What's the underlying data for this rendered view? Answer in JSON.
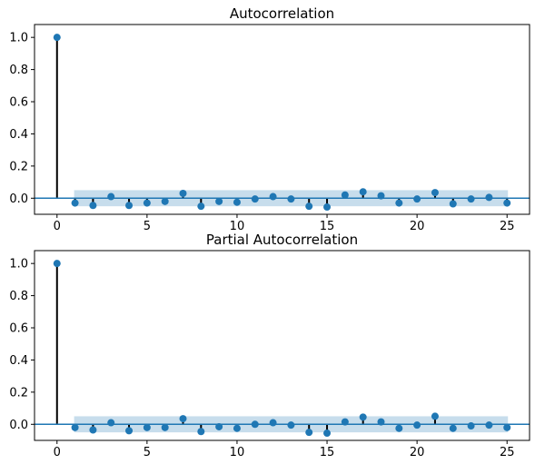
{
  "chart_data": [
    {
      "type": "stem",
      "title": "Autocorrelation",
      "xlabel": "",
      "ylabel": "",
      "xlim": [
        -1.25,
        26.25
      ],
      "ylim": [
        -0.1,
        1.08
      ],
      "x_ticks": [
        0,
        5,
        10,
        15,
        20,
        25
      ],
      "y_ticks": [
        0.0,
        0.2,
        0.4,
        0.6,
        0.8,
        1.0
      ],
      "y_tick_labels": [
        "0.0",
        "0.2",
        "0.4",
        "0.6",
        "0.8",
        "1.0"
      ],
      "confidence_band": 0.05,
      "lags": [
        0,
        1,
        2,
        3,
        4,
        5,
        6,
        7,
        8,
        9,
        10,
        11,
        12,
        13,
        14,
        15,
        16,
        17,
        18,
        19,
        20,
        21,
        22,
        23,
        24,
        25
      ],
      "values": [
        1.0,
        -0.03,
        -0.045,
        0.01,
        -0.045,
        -0.03,
        -0.02,
        0.03,
        -0.05,
        -0.02,
        -0.025,
        -0.005,
        0.01,
        -0.005,
        -0.05,
        -0.055,
        0.02,
        0.04,
        0.015,
        -0.03,
        -0.005,
        0.035,
        -0.035,
        -0.005,
        0.005,
        -0.03
      ],
      "colors": {
        "marker": "#1f77b4",
        "stem": "#000000",
        "baseline": "#1f77b4",
        "band": "#1f77b4"
      }
    },
    {
      "type": "stem",
      "title": "Partial Autocorrelation",
      "xlabel": "",
      "ylabel": "",
      "xlim": [
        -1.25,
        26.25
      ],
      "ylim": [
        -0.1,
        1.08
      ],
      "x_ticks": [
        0,
        5,
        10,
        15,
        20,
        25
      ],
      "y_ticks": [
        0.0,
        0.2,
        0.4,
        0.6,
        0.8,
        1.0
      ],
      "y_tick_labels": [
        "0.0",
        "0.2",
        "0.4",
        "0.6",
        "0.8",
        "1.0"
      ],
      "confidence_band": 0.05,
      "lags": [
        0,
        1,
        2,
        3,
        4,
        5,
        6,
        7,
        8,
        9,
        10,
        11,
        12,
        13,
        14,
        15,
        16,
        17,
        18,
        19,
        20,
        21,
        22,
        23,
        24,
        25
      ],
      "values": [
        1.0,
        -0.02,
        -0.035,
        0.01,
        -0.04,
        -0.02,
        -0.02,
        0.035,
        -0.045,
        -0.015,
        -0.025,
        0.0,
        0.01,
        -0.005,
        -0.05,
        -0.055,
        0.015,
        0.045,
        0.015,
        -0.025,
        -0.005,
        0.05,
        -0.025,
        -0.01,
        -0.005,
        -0.02
      ],
      "colors": {
        "marker": "#1f77b4",
        "stem": "#000000",
        "baseline": "#1f77b4",
        "band": "#1f77b4"
      }
    }
  ]
}
